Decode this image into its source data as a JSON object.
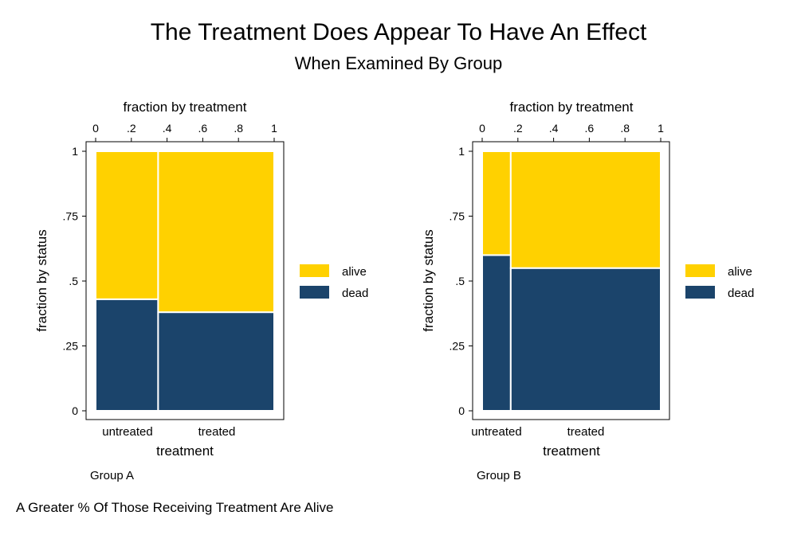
{
  "title": "The Treatment Does Appear To Have An Effect",
  "subtitle": "When Examined By Group",
  "note": "A Greater % Of Those Receiving Treatment Are Alive",
  "colors": {
    "alive": "#FFD100",
    "dead": "#1B446B",
    "gap": "#ffffff",
    "frame": "#000000"
  },
  "chart_data": [
    {
      "type": "mosaic",
      "caption": "Group A",
      "xlabel": "treatment",
      "ylabel": "fraction by status",
      "top_axis_label": "fraction by treatment",
      "top_ticks": [
        "0",
        ".2",
        ".4",
        ".6",
        ".8",
        "1"
      ],
      "top_tick_values": [
        0,
        0.2,
        0.4,
        0.6,
        0.8,
        1
      ],
      "y_ticks": [
        "0",
        ".25",
        ".5",
        ".75",
        "1"
      ],
      "y_tick_values": [
        0,
        0.25,
        0.5,
        0.75,
        1
      ],
      "categories": [
        "untreated",
        "treated"
      ],
      "category_fractions": [
        0.35,
        0.65
      ],
      "series": [
        {
          "name": "alive",
          "values": [
            0.57,
            0.62
          ]
        },
        {
          "name": "dead",
          "values": [
            0.43,
            0.38
          ]
        }
      ],
      "legend": [
        "alive",
        "dead"
      ],
      "legend_position": "right"
    },
    {
      "type": "mosaic",
      "caption": "Group B",
      "xlabel": "treatment",
      "ylabel": "fraction by status",
      "top_axis_label": "fraction by treatment",
      "top_ticks": [
        "0",
        ".2",
        ".4",
        ".6",
        ".8",
        "1"
      ],
      "top_tick_values": [
        0,
        0.2,
        0.4,
        0.6,
        0.8,
        1
      ],
      "y_ticks": [
        "0",
        ".25",
        ".5",
        ".75",
        "1"
      ],
      "y_tick_values": [
        0,
        0.25,
        0.5,
        0.75,
        1
      ],
      "categories": [
        "untreated",
        "treated"
      ],
      "category_fractions": [
        0.16,
        0.84
      ],
      "series": [
        {
          "name": "alive",
          "values": [
            0.4,
            0.45
          ]
        },
        {
          "name": "dead",
          "values": [
            0.6,
            0.55
          ]
        }
      ],
      "legend": [
        "alive",
        "dead"
      ],
      "legend_position": "right"
    }
  ]
}
